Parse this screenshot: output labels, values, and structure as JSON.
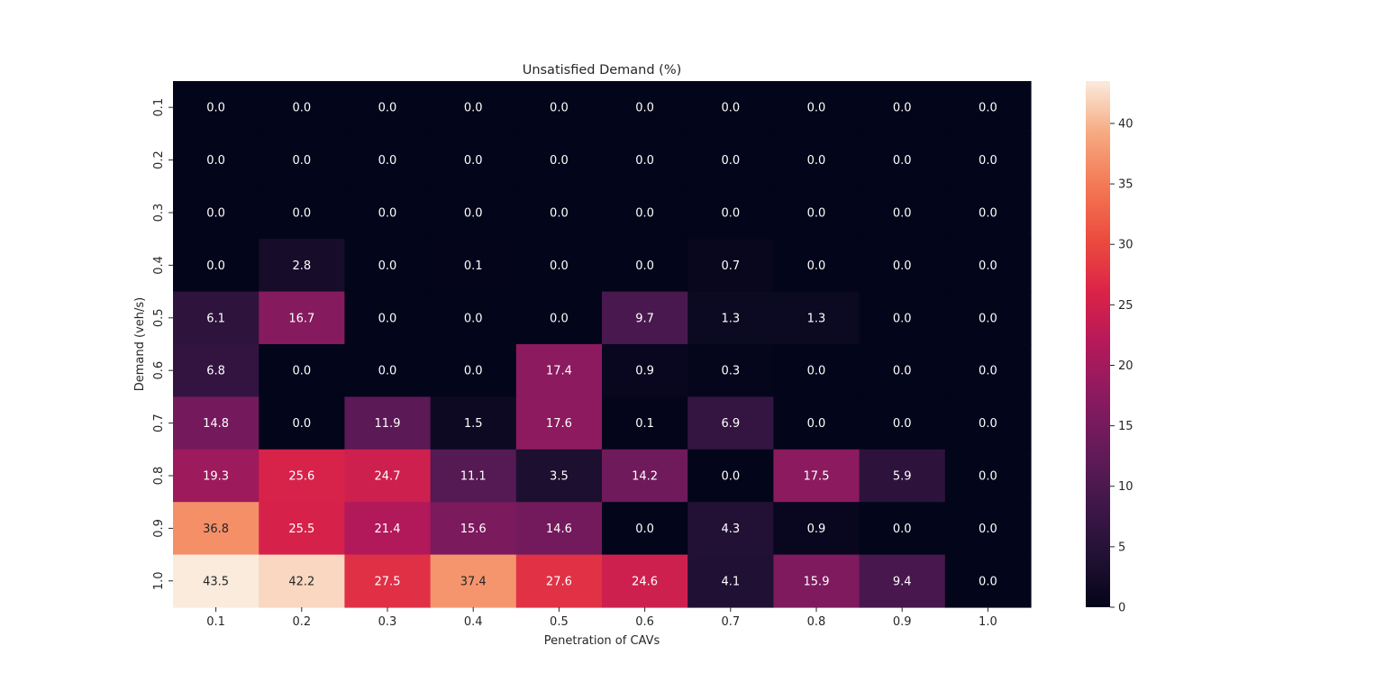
{
  "chart_data": {
    "type": "heatmap",
    "title": "Unsatisfied Demand (%)",
    "xlabel": "Penetration of CAVs",
    "ylabel": "Demand (veh/s)",
    "x_categories": [
      "0.1",
      "0.2",
      "0.3",
      "0.4",
      "0.5",
      "0.6",
      "0.7",
      "0.8",
      "0.9",
      "1.0"
    ],
    "y_categories": [
      "0.1",
      "0.2",
      "0.3",
      "0.4",
      "0.5",
      "0.6",
      "0.7",
      "0.8",
      "0.9",
      "1.0"
    ],
    "values": [
      [
        0.0,
        0.0,
        0.0,
        0.0,
        0.0,
        0.0,
        0.0,
        0.0,
        0.0,
        0.0
      ],
      [
        0.0,
        0.0,
        0.0,
        0.0,
        0.0,
        0.0,
        0.0,
        0.0,
        0.0,
        0.0
      ],
      [
        0.0,
        0.0,
        0.0,
        0.0,
        0.0,
        0.0,
        0.0,
        0.0,
        0.0,
        0.0
      ],
      [
        0.0,
        2.8,
        0.0,
        0.1,
        0.0,
        0.0,
        0.7,
        0.0,
        0.0,
        0.0
      ],
      [
        6.1,
        16.7,
        0.0,
        0.0,
        0.0,
        9.7,
        1.3,
        1.3,
        0.0,
        0.0
      ],
      [
        6.8,
        0.0,
        0.0,
        0.0,
        17.4,
        0.9,
        0.3,
        0.0,
        0.0,
        0.0
      ],
      [
        14.8,
        0.0,
        11.9,
        1.5,
        17.6,
        0.1,
        6.9,
        0.0,
        0.0,
        0.0
      ],
      [
        19.3,
        25.6,
        24.7,
        11.1,
        3.5,
        14.2,
        0.0,
        17.5,
        5.9,
        0.0
      ],
      [
        36.8,
        25.5,
        21.4,
        15.6,
        14.6,
        0.0,
        4.3,
        0.9,
        0.0,
        0.0
      ],
      [
        43.5,
        42.2,
        27.5,
        37.4,
        27.6,
        24.6,
        4.1,
        15.9,
        9.4,
        0.0
      ]
    ],
    "value_range": [
      0,
      43.5
    ],
    "colormap": "rocket",
    "colorbar_ticks": [
      0,
      5,
      10,
      15,
      20,
      25,
      30,
      35,
      40
    ],
    "annotation_format": "0.1f",
    "grid": false
  }
}
